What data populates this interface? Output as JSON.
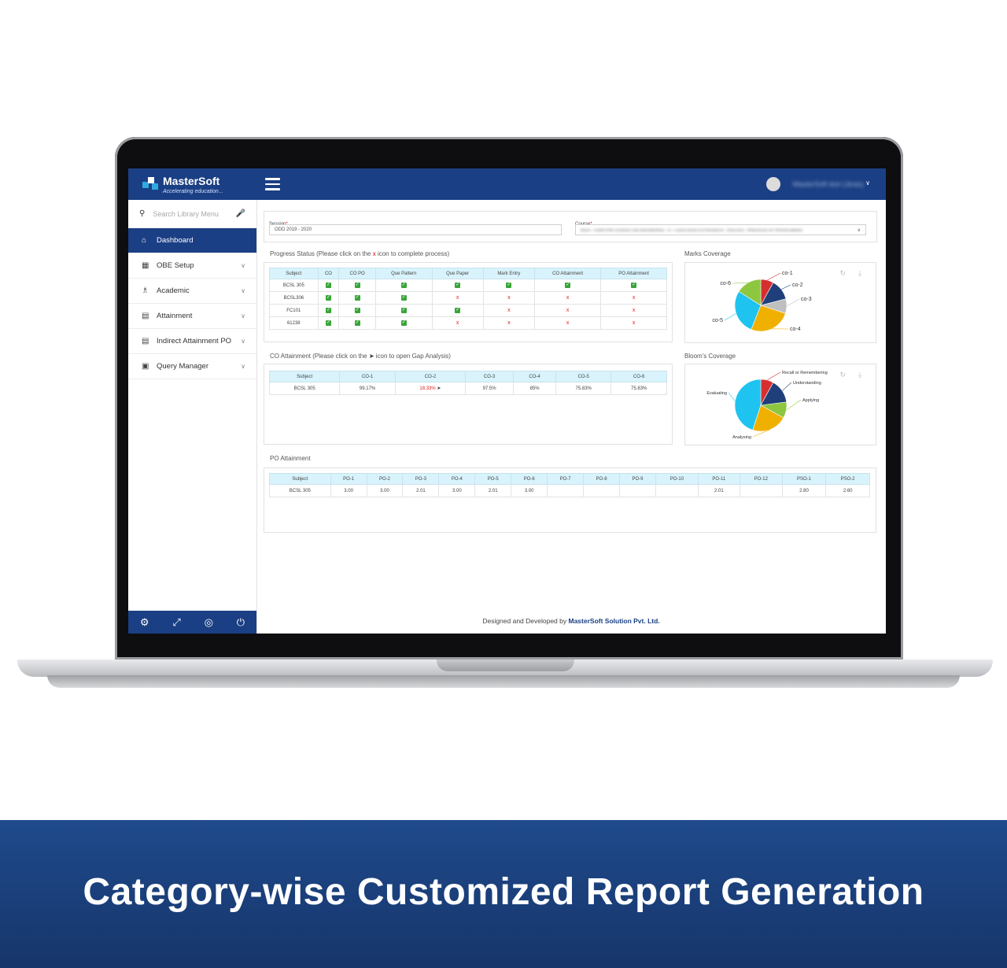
{
  "app": {
    "logo_name": "MasterSoft",
    "logo_tagline": "Accelerating education...",
    "user_name": "MasterSoft test Library"
  },
  "sidebar": {
    "search_placeholder": "Search Library Menu",
    "items": [
      {
        "label": "Dashboard",
        "icon": "home-icon",
        "active": true
      },
      {
        "label": "OBE Setup",
        "icon": "grid-icon"
      },
      {
        "label": "Academic",
        "icon": "graduation-cap-icon"
      },
      {
        "label": "Attainment",
        "icon": "document-icon"
      },
      {
        "label": "Indirect Attainment PO",
        "icon": "document-icon"
      },
      {
        "label": "Query Manager",
        "icon": "database-icon"
      }
    ],
    "footer_icons": [
      "gear-icon",
      "fullscreen-icon",
      "eye-slash-icon",
      "power-icon"
    ]
  },
  "filters": {
    "session_label": "Session",
    "session_value": "ODD 2019 - 2020",
    "course_label": "Course",
    "course_value": "BTech - COMPUTER SCIENCE AND ENGINEERING - III - A (2018-2019) (AUTONOMOUS - ENGLISH) - PRINCIPLES OF PROGRAMMING"
  },
  "progress": {
    "title_before": "Progress Status (Please click on the ",
    "title_x": "x",
    "title_after": " icon to complete process)",
    "headers": [
      "Subject",
      "CO",
      "CO PO",
      "Que Pattern",
      "Que Paper",
      "Mark Entry",
      "CO Attainment",
      "PO Attainment"
    ],
    "rows": [
      [
        "BCSL 305",
        "ok",
        "ok",
        "ok",
        "ok",
        "ok",
        "ok",
        "ok"
      ],
      [
        "BCSL306",
        "ok",
        "ok",
        "ok",
        "x",
        "x",
        "x",
        "x"
      ],
      [
        "FC101",
        "ok",
        "ok",
        "ok",
        "ok",
        "x",
        "x",
        "x"
      ],
      [
        "61238",
        "ok",
        "ok",
        "ok",
        "x",
        "x",
        "x",
        "x"
      ]
    ]
  },
  "co_attainment": {
    "title_before": "CO Attainment (Please click on the ",
    "title_after": " icon to open Gap Analysis)",
    "headers": [
      "Subject",
      "CO-1",
      "CO-2",
      "CO-3",
      "CO-4",
      "CO-5",
      "CO-6"
    ],
    "row": [
      "BCSL 305",
      "99.17%",
      "18.33%",
      "97.5%",
      "85%",
      "75.83%",
      "75.83%"
    ]
  },
  "po_attainment": {
    "title": "PO Attainment",
    "headers": [
      "Subject",
      "PO-1",
      "PO-2",
      "PO-3",
      "PO-4",
      "PO-5",
      "PO-6",
      "PO-7",
      "PO-8",
      "PO-9",
      "PO-10",
      "PO-11",
      "PO-12",
      "PSO-1",
      "PSO-2"
    ],
    "row": [
      "BCSL 305",
      "3.00",
      "3.00",
      "2.01",
      "3.00",
      "2.01",
      "3.00",
      "",
      "",
      "",
      "",
      "2.01",
      "",
      "2.80",
      "2.60"
    ]
  },
  "marks_coverage": {
    "title": "Marks Coverage",
    "slices": [
      {
        "label": "co-1",
        "value": 8,
        "color": "#d62f2f"
      },
      {
        "label": "co-2",
        "value": 13,
        "color": "#1f3f7a"
      },
      {
        "label": "co-3",
        "value": 9,
        "color": "#bfbfbf"
      },
      {
        "label": "co-4",
        "value": 26,
        "color": "#f0b000"
      },
      {
        "label": "co-5",
        "value": 28,
        "color": "#1fc3ef"
      },
      {
        "label": "co-6",
        "value": 16,
        "color": "#8dc63f"
      }
    ]
  },
  "blooms_coverage": {
    "title": "Bloom's Coverage",
    "slices": [
      {
        "label": "Recall or Remembering",
        "value": 8,
        "color": "#d62f2f"
      },
      {
        "label": "Understanding",
        "value": 15,
        "color": "#1f3f7a"
      },
      {
        "label": "Applying",
        "value": 10,
        "color": "#8dc63f"
      },
      {
        "label": "Analysing",
        "value": 22,
        "color": "#f0b000"
      },
      {
        "label": "Evaluating",
        "value": 45,
        "color": "#1fc3ef"
      }
    ]
  },
  "footer": {
    "prefix": "Designed and Developed by ",
    "company": "MasterSoft Solution Pvt. Ltd."
  },
  "banner": {
    "text": "Category-wise Customized Report Generation"
  }
}
